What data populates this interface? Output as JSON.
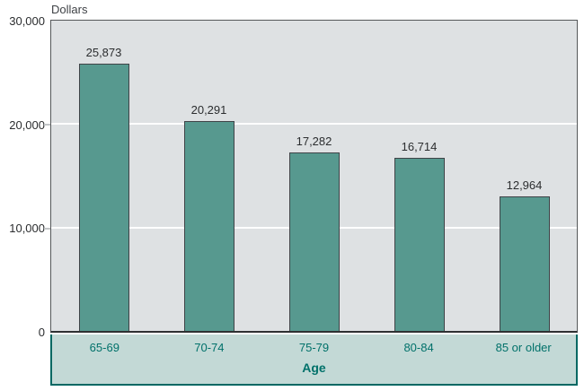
{
  "chart_data": {
    "type": "bar",
    "title": "",
    "y_axis_label": "Dollars",
    "x_axis_label": "Age",
    "categories": [
      "65-69",
      "70-74",
      "75-79",
      "80-84",
      "85 or older"
    ],
    "values": [
      25873,
      20291,
      17282,
      16714,
      12964
    ],
    "value_labels": [
      "25,873",
      "20,291",
      "17,282",
      "16,714",
      "12,964"
    ],
    "y_ticks": {
      "t30k": "30,000",
      "t20k": "20,000",
      "t10k": "10,000",
      "t0": "0"
    },
    "ylim": [
      0,
      30000
    ],
    "grid": true,
    "legend": "none",
    "colors": {
      "bar_fill": "#57998f",
      "bar_border": "#3f4347",
      "plot_background": "#dee1e3",
      "plot_border": "#55585a",
      "gridline": "#ffffff",
      "band_background": "#c3d9d6",
      "band_border": "#016863",
      "band_text": "#00716a",
      "label_text": "#2b2d2f"
    }
  }
}
